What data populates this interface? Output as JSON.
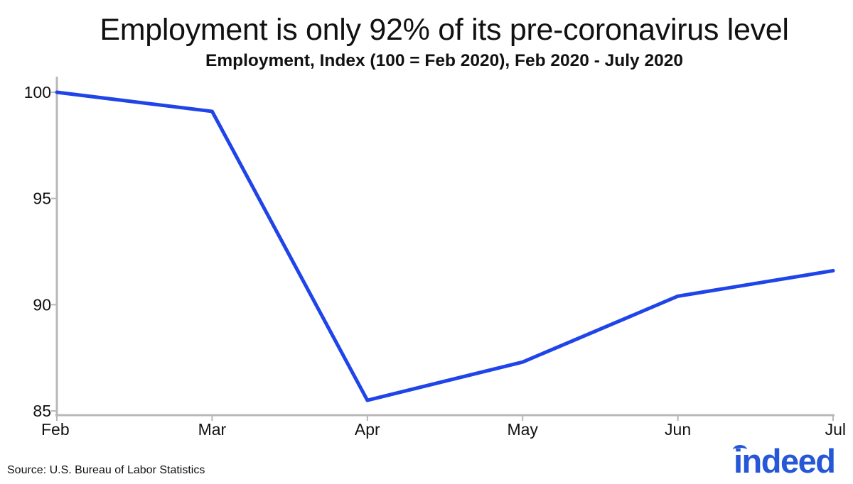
{
  "chart_data": {
    "type": "line",
    "title": "Employment is only 92% of its pre-coronavirus level",
    "subtitle": "Employment, Index (100 = Feb 2020), Feb 2020 - July 2020",
    "xlabel": "",
    "ylabel": "",
    "categories": [
      "Feb",
      "Mar",
      "Apr",
      "May",
      "Jun",
      "Jul"
    ],
    "series": [
      {
        "values": [
          100.0,
          99.1,
          85.5,
          87.3,
          90.4,
          91.6
        ],
        "color": "#1f44e8"
      }
    ],
    "ylim": [
      85,
      100
    ],
    "yticks": [
      85,
      90,
      95,
      100
    ],
    "grid": false
  },
  "source": "Source: U.S. Bureau of Labor Statistics",
  "logo": "indeed",
  "colors": {
    "line": "#1f44e8",
    "brand": "#2557d6",
    "axis": "#b8b8b8"
  }
}
